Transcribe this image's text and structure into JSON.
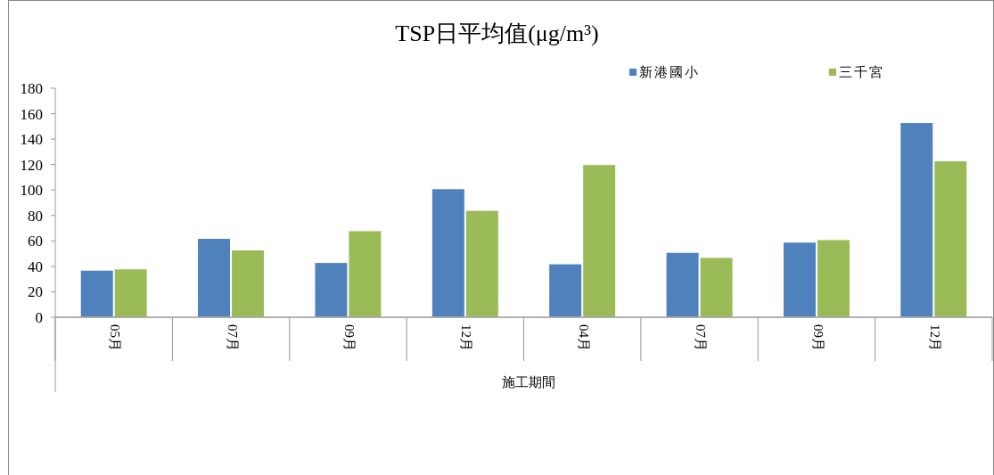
{
  "chart_data": {
    "type": "bar",
    "title": "TSP日平均值(μg/m³)",
    "xlabel": "施工期間",
    "categories": [
      "05月",
      "07月",
      "09月",
      "12月",
      "04月",
      "07月",
      "09月",
      "12月"
    ],
    "series": [
      {
        "name": "新港國小",
        "color": "#4f81bd",
        "values": [
          37,
          62,
          43,
          101,
          42,
          51,
          59,
          153
        ]
      },
      {
        "name": "三千宮",
        "color": "#9bbb59",
        "values": [
          38,
          53,
          68,
          84,
          120,
          47,
          61,
          123
        ]
      }
    ],
    "ylim": [
      0,
      180
    ],
    "yticks": [
      0,
      20,
      40,
      60,
      80,
      100,
      120,
      140,
      160,
      180
    ],
    "grid": false,
    "legend": "top right"
  }
}
